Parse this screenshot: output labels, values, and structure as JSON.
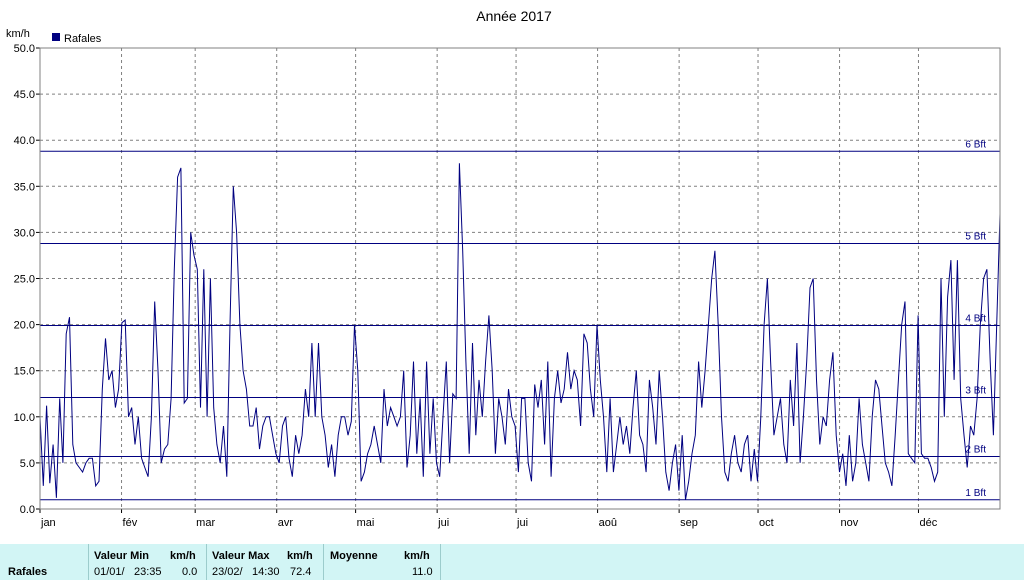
{
  "chart_data": {
    "type": "line",
    "title": "Année 2017",
    "ylabel": "km/h",
    "ylim": [
      0,
      50
    ],
    "yticks": [
      "0.0",
      "5.0",
      "10.0",
      "15.0",
      "20.0",
      "25.0",
      "30.0",
      "35.0",
      "40.0",
      "45.0",
      "50.0"
    ],
    "x_ticks": [
      "jan",
      "fév",
      "mar",
      "avr",
      "mai",
      "jui",
      "jui",
      "aoû",
      "sep",
      "oct",
      "nov",
      "déc"
    ],
    "grid": true,
    "legend_position": "top-left",
    "series": [
      {
        "name": "Rafales",
        "color": "#000080",
        "values": [
          10.0,
          2.5,
          11.2,
          2.8,
          7.0,
          1.2,
          12.0,
          5.0,
          19.0,
          20.8,
          7.0,
          5.0,
          4.5,
          4.0,
          5.0,
          5.5,
          5.5,
          2.5,
          3.0,
          13.0,
          18.5,
          14.0,
          15.0,
          11.0,
          13.0,
          20.2,
          20.5,
          10.0,
          11.0,
          7.0,
          10.0,
          5.5,
          4.5,
          3.5,
          10.0,
          22.5,
          15.0,
          5.0,
          6.5,
          7.0,
          12.0,
          26.0,
          36.0,
          37.0,
          11.5,
          12.0,
          30.0,
          27.5,
          26.0,
          11.0,
          26.0,
          10.0,
          25.0,
          11.0,
          7.0,
          5.0,
          9.0,
          3.5,
          20.0,
          35.0,
          30.0,
          20.0,
          15.0,
          13.0,
          9.0,
          9.0,
          11.0,
          6.5,
          9.0,
          10.0,
          10.0,
          8.0,
          6.0,
          5.0,
          9.0,
          10.0,
          5.5,
          3.5,
          8.0,
          6.0,
          8.0,
          13.0,
          10.0,
          18.0,
          10.0,
          18.0,
          10.0,
          8.0,
          4.5,
          7.0,
          3.5,
          8.0,
          10.0,
          10.0,
          8.0,
          9.5,
          20.0,
          15.0,
          3.0,
          4.0,
          6.0,
          7.0,
          9.0,
          7.0,
          5.0,
          13.0,
          9.0,
          11.0,
          10.0,
          9.0,
          10.0,
          15.0,
          4.5,
          8.0,
          16.0,
          6.0,
          12.0,
          3.5,
          16.0,
          6.0,
          12.0,
          5.0,
          3.5,
          10.0,
          16.0,
          5.0,
          12.5,
          12.0,
          37.5,
          28.0,
          16.0,
          6.0,
          18.0,
          8.0,
          14.0,
          10.0,
          16.0,
          21.0,
          15.0,
          6.0,
          12.0,
          10.0,
          7.0,
          13.0,
          10.0,
          9.0,
          4.0,
          12.0,
          12.0,
          5.0,
          3.0,
          13.5,
          11.0,
          14.0,
          7.0,
          16.0,
          3.5,
          12.0,
          15.0,
          11.5,
          13.0,
          17.0,
          13.0,
          15.0,
          14.0,
          9.0,
          19.0,
          18.0,
          13.0,
          10.0,
          20.0,
          14.0,
          10.0,
          4.0,
          12.0,
          4.0,
          7.0,
          10.0,
          7.0,
          9.0,
          6.0,
          11.0,
          15.0,
          8.0,
          7.0,
          4.0,
          14.0,
          11.0,
          7.0,
          15.0,
          10.0,
          4.0,
          2.0,
          5.0,
          7.0,
          2.0,
          8.0,
          1.0,
          3.0,
          6.0,
          8.0,
          16.0,
          11.0,
          15.0,
          20.0,
          25.0,
          28.0,
          20.0,
          10.0,
          4.0,
          3.0,
          6.0,
          8.0,
          5.0,
          4.0,
          7.0,
          8.0,
          3.0,
          6.5,
          3.0,
          10.0,
          20.0,
          25.0,
          16.0,
          8.0,
          10.0,
          12.0,
          7.0,
          5.0,
          14.0,
          9.0,
          18.0,
          5.0,
          10.0,
          16.0,
          24.0,
          25.0,
          14.0,
          7.0,
          10.0,
          9.0,
          14.0,
          17.0,
          8.0,
          4.0,
          6.0,
          2.5,
          8.0,
          3.0,
          5.0,
          12.0,
          7.0,
          5.0,
          3.0,
          10.0,
          14.0,
          13.0,
          9.0,
          5.0,
          4.0,
          2.5,
          8.0,
          14.0,
          20.0,
          22.5,
          6.0,
          5.5,
          5.0,
          21.0,
          6.0,
          5.5,
          5.5,
          4.5,
          3.0,
          4.0,
          25.0,
          10.0,
          23.0,
          27.0,
          14.0,
          27.0,
          12.0,
          8.0,
          4.5,
          9.0,
          8.0,
          12.0,
          20.0,
          25.0,
          26.0,
          16.0,
          8.0,
          20.0,
          32.0
        ]
      }
    ],
    "reference_lines": [
      {
        "label": "1 Bft",
        "value": 1.0
      },
      {
        "label": "2 Bft",
        "value": 5.7
      },
      {
        "label": "3 Bft",
        "value": 12.1
      },
      {
        "label": "4 Bft",
        "value": 19.9
      },
      {
        "label": "5 Bft",
        "value": 28.8
      },
      {
        "label": "6 Bft",
        "value": 38.8
      }
    ]
  },
  "stats": {
    "row_label": "Rafales",
    "min_header": "Valeur Min",
    "min_unit": "km/h",
    "min_date": "01/01/",
    "min_time": "23:35",
    "min_value": "0.0",
    "max_header": "Valeur Max",
    "max_unit": "km/h",
    "max_date": "23/02/",
    "max_time": "14:30",
    "max_value": "72.4",
    "mean_header": "Moyenne",
    "mean_unit": "km/h",
    "mean_value": "11.0"
  }
}
